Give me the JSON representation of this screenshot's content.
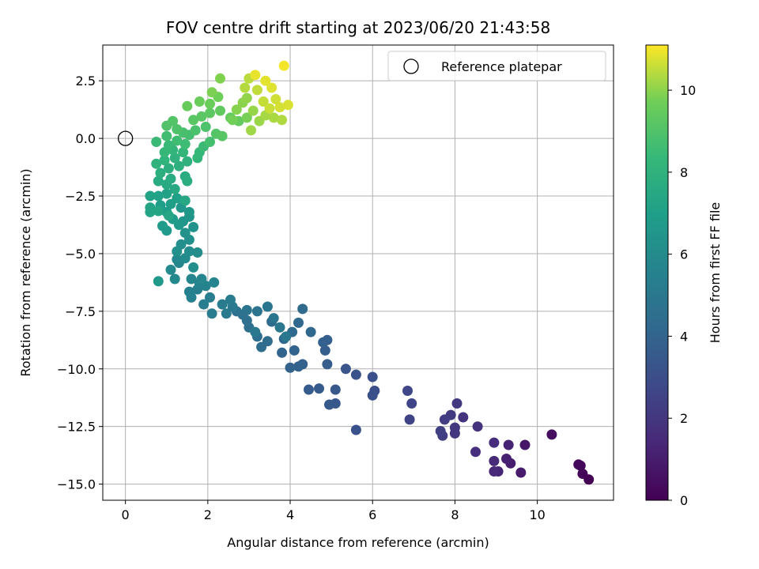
{
  "chart_data": {
    "type": "scatter",
    "title": "FOV centre drift starting at 2023/06/20 21:43:58",
    "xlabel": "Angular distance from reference (arcmin)",
    "ylabel": "Rotation from reference (arcmin)",
    "xlim": [
      -0.55,
      11.85
    ],
    "ylim": [
      -15.7,
      4.05
    ],
    "xticks": [
      0,
      2,
      4,
      6,
      8,
      10
    ],
    "xtick_labels": [
      "0",
      "2",
      "4",
      "6",
      "8",
      "10"
    ],
    "yticks": [
      2.5,
      0,
      -2.5,
      -5,
      -7.5,
      -10,
      -12.5,
      -15
    ],
    "ytick_labels": [
      "2.5",
      "0.0",
      "−2.5",
      "−5.0",
      "−7.5",
      "−10.0",
      "−12.5",
      "−15.0"
    ],
    "grid": true,
    "legend": {
      "position": "top-right",
      "entries": [
        {
          "label": "Reference platepar",
          "marker": "open-circle"
        }
      ]
    },
    "reference_point": {
      "x": 0,
      "y": 0
    },
    "colorbar": {
      "label": "Hours from first FF file",
      "colormap": "viridis",
      "range": [
        0,
        11.1
      ],
      "ticks": [
        0,
        2,
        4,
        6,
        8,
        10
      ],
      "tick_labels": [
        "0",
        "2",
        "4",
        "6",
        "8",
        "10"
      ]
    },
    "series": [
      {
        "color_dimension": "hours",
        "points": [
          [
            11.25,
            -14.8,
            0.05
          ],
          [
            11.1,
            -14.55,
            0.15
          ],
          [
            11.05,
            -14.2,
            0.25
          ],
          [
            11.0,
            -14.15,
            0.3
          ],
          [
            10.35,
            -12.85,
            0.5
          ],
          [
            9.7,
            -13.3,
            0.8
          ],
          [
            9.6,
            -14.5,
            0.9
          ],
          [
            9.35,
            -14.1,
            1.0
          ],
          [
            9.25,
            -13.9,
            1.1
          ],
          [
            9.3,
            -13.3,
            1.2
          ],
          [
            9.05,
            -14.45,
            1.3
          ],
          [
            8.95,
            -14.45,
            1.4
          ],
          [
            8.95,
            -14.0,
            1.5
          ],
          [
            8.95,
            -13.2,
            1.6
          ],
          [
            8.5,
            -13.6,
            1.7
          ],
          [
            8.55,
            -12.5,
            1.8
          ],
          [
            8.2,
            -12.1,
            1.9
          ],
          [
            8.0,
            -12.8,
            2.0
          ],
          [
            8.0,
            -12.55,
            2.05
          ],
          [
            8.05,
            -11.5,
            2.1
          ],
          [
            7.9,
            -12.0,
            2.2
          ],
          [
            7.75,
            -12.2,
            2.25
          ],
          [
            7.7,
            -12.9,
            2.3
          ],
          [
            7.65,
            -12.7,
            2.35
          ],
          [
            6.9,
            -12.2,
            2.5
          ],
          [
            6.95,
            -11.5,
            2.6
          ],
          [
            6.85,
            -10.95,
            2.7
          ],
          [
            6.05,
            -10.95,
            3.0
          ],
          [
            6.0,
            -11.15,
            3.05
          ],
          [
            6.0,
            -10.35,
            3.1
          ],
          [
            5.6,
            -12.65,
            3.2
          ],
          [
            5.6,
            -10.25,
            3.25
          ],
          [
            5.35,
            -10.0,
            3.3
          ],
          [
            5.1,
            -10.9,
            3.4
          ],
          [
            5.1,
            -11.5,
            3.45
          ],
          [
            4.95,
            -11.55,
            3.5
          ],
          [
            4.7,
            -10.85,
            3.55
          ],
          [
            4.45,
            -10.9,
            3.6
          ],
          [
            4.9,
            -9.8,
            3.65
          ],
          [
            4.85,
            -9.2,
            3.7
          ],
          [
            4.9,
            -8.75,
            3.75
          ],
          [
            4.8,
            -8.85,
            3.8
          ],
          [
            4.3,
            -9.8,
            3.85
          ],
          [
            4.2,
            -9.9,
            3.9
          ],
          [
            4.0,
            -9.95,
            3.95
          ],
          [
            4.1,
            -9.2,
            4.0
          ],
          [
            3.8,
            -9.3,
            4.05
          ],
          [
            3.85,
            -8.7,
            4.1
          ],
          [
            4.5,
            -8.4,
            4.15
          ],
          [
            4.2,
            -8.0,
            4.2
          ],
          [
            4.05,
            -8.4,
            4.25
          ],
          [
            4.3,
            -7.4,
            4.3
          ],
          [
            3.55,
            -7.95,
            4.35
          ],
          [
            3.45,
            -8.8,
            4.4
          ],
          [
            3.3,
            -9.05,
            4.45
          ],
          [
            3.2,
            -8.6,
            4.5
          ],
          [
            3.0,
            -8.2,
            4.55
          ],
          [
            2.95,
            -7.9,
            4.6
          ],
          [
            2.85,
            -7.65,
            4.65
          ],
          [
            2.7,
            -7.5,
            4.7
          ],
          [
            2.95,
            -7.45,
            4.75
          ],
          [
            3.2,
            -7.5,
            4.8
          ],
          [
            3.45,
            -7.3,
            4.85
          ],
          [
            3.6,
            -7.8,
            4.9
          ],
          [
            3.75,
            -8.2,
            4.95
          ],
          [
            3.9,
            -8.6,
            5.0
          ],
          [
            3.15,
            -8.4,
            5.0
          ],
          [
            2.6,
            -7.3,
            5.05
          ],
          [
            2.45,
            -7.6,
            5.1
          ],
          [
            2.55,
            -7.0,
            5.15
          ],
          [
            2.1,
            -7.6,
            5.2
          ],
          [
            2.35,
            -7.2,
            5.25
          ],
          [
            2.05,
            -6.9,
            5.3
          ],
          [
            1.9,
            -7.2,
            5.35
          ],
          [
            1.75,
            -6.55,
            5.4
          ],
          [
            1.55,
            -6.65,
            5.45
          ],
          [
            1.6,
            -6.9,
            5.5
          ],
          [
            1.8,
            -6.3,
            5.55
          ],
          [
            1.95,
            -6.4,
            5.6
          ],
          [
            2.15,
            -6.25,
            5.65
          ],
          [
            1.6,
            -6.1,
            5.7
          ],
          [
            1.85,
            -6.1,
            5.75
          ],
          [
            1.3,
            -5.4,
            5.8
          ],
          [
            1.25,
            -5.25,
            5.85
          ],
          [
            1.2,
            -6.1,
            5.9
          ],
          [
            1.1,
            -5.7,
            5.95
          ],
          [
            1.45,
            -5.2,
            6.0
          ],
          [
            1.55,
            -4.9,
            6.05
          ],
          [
            1.75,
            -4.95,
            6.1
          ],
          [
            1.65,
            -5.6,
            6.15
          ],
          [
            1.35,
            -4.6,
            6.2
          ],
          [
            1.25,
            -4.9,
            6.25
          ],
          [
            1.55,
            -4.4,
            6.3
          ],
          [
            1.45,
            -4.1,
            6.35
          ],
          [
            1.65,
            -3.85,
            6.4
          ],
          [
            1.55,
            -3.4,
            6.45
          ],
          [
            1.4,
            -3.6,
            6.5
          ],
          [
            1.35,
            -3.0,
            6.55
          ],
          [
            1.55,
            -3.2,
            6.6
          ],
          [
            1.3,
            -3.75,
            6.65
          ],
          [
            0.8,
            -6.2,
            6.7
          ],
          [
            1.0,
            -4.0,
            6.75
          ],
          [
            0.9,
            -3.8,
            6.8
          ],
          [
            1.15,
            -3.5,
            6.85
          ],
          [
            1.0,
            -3.2,
            6.9
          ],
          [
            0.85,
            -2.9,
            6.95
          ],
          [
            1.1,
            -2.85,
            7.0
          ],
          [
            1.25,
            -2.6,
            7.05
          ],
          [
            1.0,
            -2.4,
            7.1
          ],
          [
            0.8,
            -2.5,
            7.15
          ],
          [
            0.6,
            -2.5,
            7.2
          ],
          [
            0.6,
            -3.0,
            7.25
          ],
          [
            0.6,
            -3.2,
            7.3
          ],
          [
            0.8,
            -3.15,
            7.35
          ],
          [
            1.05,
            -3.35,
            7.4
          ],
          [
            1.45,
            -2.7,
            7.45
          ],
          [
            1.2,
            -2.2,
            7.5
          ],
          [
            1.0,
            -2.0,
            7.55
          ],
          [
            0.8,
            -1.85,
            7.6
          ],
          [
            1.1,
            -1.75,
            7.65
          ],
          [
            1.45,
            -1.65,
            7.7
          ],
          [
            1.5,
            -1.85,
            7.75
          ],
          [
            0.85,
            -1.5,
            7.8
          ],
          [
            1.05,
            -1.3,
            7.85
          ],
          [
            1.3,
            -1.2,
            7.9
          ],
          [
            1.5,
            -1.0,
            7.95
          ],
          [
            1.2,
            -0.85,
            8.0
          ],
          [
            0.75,
            -1.1,
            8.05
          ],
          [
            0.95,
            -0.95,
            8.1
          ],
          [
            1.15,
            -0.5,
            8.15
          ],
          [
            1.4,
            -0.6,
            8.2
          ],
          [
            1.75,
            -0.85,
            8.25
          ],
          [
            1.8,
            -0.6,
            8.3
          ],
          [
            0.95,
            -0.6,
            8.35
          ],
          [
            1.05,
            -0.3,
            8.4
          ],
          [
            0.75,
            -0.15,
            8.45
          ],
          [
            1.9,
            -0.35,
            8.5
          ],
          [
            1.45,
            -0.25,
            8.55
          ],
          [
            1.25,
            -0.1,
            8.6
          ],
          [
            1.0,
            0.1,
            8.65
          ],
          [
            1.55,
            0.15,
            8.7
          ],
          [
            2.05,
            -0.15,
            8.75
          ],
          [
            1.4,
            0.25,
            8.8
          ],
          [
            1.7,
            0.35,
            8.85
          ],
          [
            1.95,
            0.5,
            8.9
          ],
          [
            1.25,
            0.4,
            8.95
          ],
          [
            1.0,
            0.55,
            9.0
          ],
          [
            1.15,
            0.75,
            9.05
          ],
          [
            2.2,
            0.2,
            9.1
          ],
          [
            2.35,
            0.1,
            9.15
          ],
          [
            1.65,
            0.8,
            9.2
          ],
          [
            1.85,
            0.95,
            9.25
          ],
          [
            2.05,
            1.1,
            9.3
          ],
          [
            2.3,
            1.2,
            9.4
          ],
          [
            2.55,
            0.9,
            9.45
          ],
          [
            2.75,
            0.75,
            9.5
          ],
          [
            1.5,
            1.4,
            9.55
          ],
          [
            1.8,
            1.6,
            9.6
          ],
          [
            2.05,
            1.5,
            9.65
          ],
          [
            2.25,
            1.8,
            9.7
          ],
          [
            2.6,
            0.8,
            9.75
          ],
          [
            2.95,
            0.9,
            9.8
          ],
          [
            2.1,
            2.0,
            9.85
          ],
          [
            2.3,
            2.6,
            9.9
          ],
          [
            2.7,
            1.25,
            9.95
          ],
          [
            2.85,
            1.55,
            10.0
          ],
          [
            2.95,
            1.75,
            10.05
          ],
          [
            3.1,
            1.2,
            10.1
          ],
          [
            3.25,
            0.75,
            10.15
          ],
          [
            3.05,
            0.35,
            10.2
          ],
          [
            3.4,
            1.0,
            10.25
          ],
          [
            3.6,
            0.9,
            10.3
          ],
          [
            3.8,
            0.8,
            10.35
          ],
          [
            2.9,
            2.2,
            10.4
          ],
          [
            3.0,
            2.6,
            10.45
          ],
          [
            3.2,
            2.1,
            10.5
          ],
          [
            3.35,
            1.6,
            10.55
          ],
          [
            3.5,
            1.3,
            10.6
          ],
          [
            3.65,
            1.7,
            10.65
          ],
          [
            3.75,
            1.35,
            10.7
          ],
          [
            3.95,
            1.45,
            10.75
          ],
          [
            3.55,
            2.2,
            10.8
          ],
          [
            3.4,
            2.5,
            10.85
          ],
          [
            3.15,
            2.75,
            10.9
          ],
          [
            3.85,
            3.15,
            11.0
          ]
        ]
      }
    ]
  }
}
